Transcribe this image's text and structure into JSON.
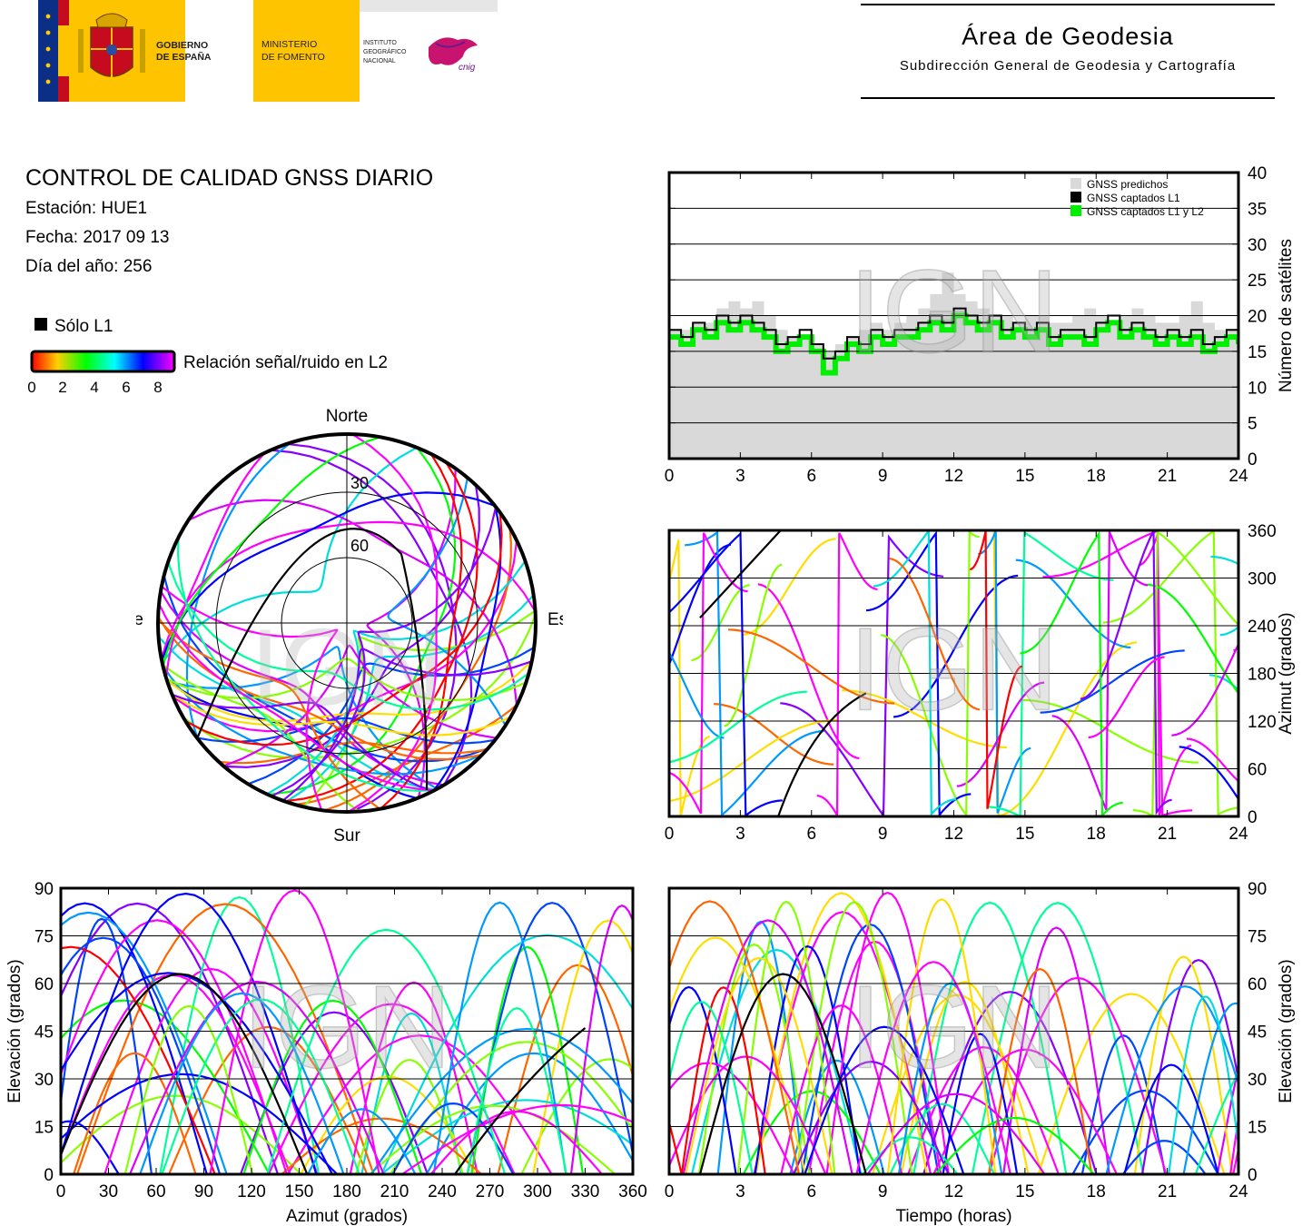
{
  "header": {
    "gov_line1": "GOBIERNO",
    "gov_line2": "DE ESPAÑA",
    "min_line1": "MINISTERIO",
    "min_line2": "DE FOMENTO",
    "ign_line1": "INSTITUTO",
    "ign_line2": "GEOGRÁFICO",
    "ign_line3": "NACIONAL",
    "cnig_logo": "cnig",
    "area_title": "Área de Geodesia",
    "area_subtitle": "Subdirección General de Geodesia y Cartografía",
    "colors": {
      "flag_red": "#c60b1e",
      "flag_yellow": "#ffc400",
      "eu_blue": "#003399",
      "ign_magenta": "#c8146e"
    }
  },
  "info": {
    "title": "CONTROL DE CALIDAD GNSS DIARIO",
    "station": "Estación: HUE1",
    "date": "Fecha: 2017 09 13",
    "doy": "Día del año: 256"
  },
  "legend": {
    "solo_l1": "Sólo L1",
    "snr_label": "Relación señal/ruido en L2",
    "ticks": [
      "0",
      "2",
      "4",
      "6",
      "8"
    ],
    "gradient_colors": [
      "#ff0000",
      "#ffd000",
      "#00ff00",
      "#00ffff",
      "#0000ff",
      "#ff00ff"
    ]
  },
  "watermark": "IGN",
  "chart_data": [
    {
      "id": "skyplot",
      "type": "scatter",
      "directions": {
        "north": "Norte",
        "south": "Sur",
        "west": "Oeste",
        "east": "Este"
      },
      "elevation_rings": [
        "30",
        "60"
      ],
      "notes": "polar sky plot of satellite tracks (azimuth/elevation), coloured by L2 SNR; no-coverage gap toward north"
    },
    {
      "id": "num-satellites",
      "type": "area",
      "ylabel": "Número de satélites",
      "xlim": [
        0,
        24
      ],
      "ylim": [
        0,
        40
      ],
      "x_ticks": [
        "0",
        "3",
        "6",
        "9",
        "12",
        "15",
        "18",
        "21",
        "24"
      ],
      "y_ticks": [
        "0",
        "5",
        "10",
        "15",
        "20",
        "25",
        "30",
        "35",
        "40"
      ],
      "legend": [
        "GNSS predichos",
        "GNSS captados L1",
        "GNSS captados L1 y L2"
      ],
      "legend_position": "top-right",
      "grid": true,
      "series": [
        {
          "name": "GNSS predichos",
          "color": "#d9d9d9",
          "x": [
            0,
            1,
            2,
            2.5,
            3,
            3.5,
            4,
            4.5,
            5,
            5.5,
            6,
            6.5,
            7,
            7.5,
            8,
            8.5,
            9,
            9.5,
            10,
            10.5,
            11,
            11.5,
            12,
            12.5,
            13,
            13.5,
            14,
            14.5,
            15,
            15.5,
            16,
            16.5,
            17,
            17.5,
            18,
            18.5,
            19,
            19.5,
            20,
            20.5,
            21,
            21.5,
            22,
            22.5,
            23,
            23.5,
            24
          ],
          "values": [
            18,
            19,
            21,
            22,
            21,
            22,
            20,
            18,
            17,
            17,
            16,
            15,
            16,
            17,
            18,
            19,
            18,
            19,
            20,
            21,
            23,
            26,
            23,
            22,
            21,
            20,
            20,
            19,
            20,
            20,
            19,
            19,
            20,
            21,
            20,
            19,
            20,
            21,
            20,
            19,
            19,
            20,
            22,
            19,
            18,
            18,
            18
          ]
        },
        {
          "name": "GNSS captados L1",
          "color": "#000000",
          "x": [
            0,
            0.5,
            1,
            1.5,
            2,
            2.5,
            3,
            3.5,
            4,
            4.5,
            5,
            5.5,
            6,
            6.5,
            7,
            7.5,
            8,
            8.5,
            9,
            9.5,
            10,
            10.5,
            11,
            11.5,
            12,
            12.5,
            13,
            13.5,
            14,
            14.5,
            15,
            15.5,
            16,
            16.5,
            17,
            17.5,
            18,
            18.5,
            19,
            19.5,
            20,
            20.5,
            21,
            21.5,
            22,
            22.5,
            23,
            23.5,
            24
          ],
          "values": [
            18,
            17,
            19,
            18,
            20,
            19,
            20,
            19,
            18,
            16,
            17,
            18,
            16,
            14,
            15,
            17,
            16,
            18,
            17,
            18,
            18,
            19,
            20,
            19,
            21,
            20,
            19,
            20,
            18,
            19,
            18,
            19,
            17,
            18,
            18,
            17,
            19,
            20,
            18,
            19,
            18,
            17,
            18,
            17,
            18,
            16,
            17,
            18,
            17
          ]
        },
        {
          "name": "GNSS captados L1 y L2",
          "color": "#00ee00",
          "x": [
            0,
            0.5,
            1,
            1.5,
            2,
            2.5,
            3,
            3.5,
            4,
            4.5,
            5,
            5.5,
            6,
            6.5,
            7,
            7.5,
            8,
            8.5,
            9,
            9.5,
            10,
            10.5,
            11,
            11.5,
            12,
            12.5,
            13,
            13.5,
            14,
            14.5,
            15,
            15.5,
            16,
            16.5,
            17,
            17.5,
            18,
            18.5,
            19,
            19.5,
            20,
            20.5,
            21,
            21.5,
            22,
            22.5,
            23,
            23.5,
            24
          ],
          "values": [
            17,
            16,
            18,
            17,
            19,
            18,
            19,
            18,
            17,
            15,
            16,
            17,
            15,
            12,
            14,
            16,
            15,
            17,
            16,
            17,
            17,
            18,
            19,
            18,
            20,
            19,
            18,
            19,
            17,
            18,
            17,
            18,
            16,
            17,
            17,
            16,
            18,
            19,
            17,
            18,
            17,
            16,
            17,
            16,
            17,
            15,
            16,
            17,
            16
          ]
        }
      ]
    },
    {
      "id": "azimuth-time",
      "type": "scatter",
      "ylabel": "Azimut (grados)",
      "xlim": [
        0,
        24
      ],
      "ylim": [
        0,
        360
      ],
      "x_ticks": [
        "0",
        "3",
        "6",
        "9",
        "12",
        "15",
        "18",
        "21",
        "24"
      ],
      "y_ticks": [
        "0",
        "60",
        "120",
        "180",
        "240",
        "300",
        "360"
      ],
      "grid": true,
      "notes": "satellite azimuth vs time, dense multicolour tracks"
    },
    {
      "id": "elevation-azimuth",
      "type": "scatter",
      "xlabel": "Azimut (grados)",
      "ylabel": "Elevación (grados)",
      "xlim": [
        0,
        360
      ],
      "ylim": [
        0,
        90
      ],
      "x_ticks": [
        "0",
        "30",
        "60",
        "90",
        "120",
        "150",
        "180",
        "210",
        "240",
        "270",
        "300",
        "330",
        "360"
      ],
      "y_ticks": [
        "0",
        "15",
        "30",
        "45",
        "60",
        "75",
        "90"
      ],
      "grid": true,
      "notes": "satellite elevation vs azimuth, arches"
    },
    {
      "id": "elevation-time",
      "type": "scatter",
      "xlabel": "Tiempo (horas)",
      "ylabel": "Elevación (grados)",
      "xlim": [
        0,
        24
      ],
      "ylim": [
        0,
        90
      ],
      "x_ticks": [
        "0",
        "3",
        "6",
        "9",
        "12",
        "15",
        "18",
        "21",
        "24"
      ],
      "y_ticks": [
        "0",
        "15",
        "30",
        "45",
        "60",
        "75",
        "90"
      ],
      "grid": true,
      "notes": "satellite elevation vs time, arches"
    }
  ]
}
